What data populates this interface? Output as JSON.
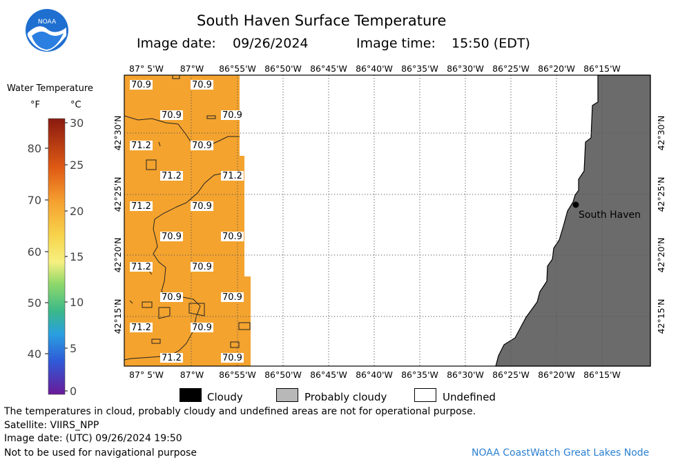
{
  "header": {
    "logo_text": "NOAA",
    "title": "South Haven Surface Temperature",
    "image_date_label": "Image date:",
    "image_date": "09/26/2024",
    "image_time_label": "Image time:",
    "image_time": "15:50 (EDT)"
  },
  "colorbar": {
    "title": "Water Temperature",
    "unit_f": "°F",
    "unit_c": "°C",
    "f_ticks": [
      "80",
      "70",
      "60",
      "50",
      "40"
    ],
    "c_ticks": [
      "30",
      "25",
      "20",
      "15",
      "10",
      "5",
      "0"
    ]
  },
  "map": {
    "lon_labels": [
      "87° 5'W",
      "87°W",
      "86°55'W",
      "86°50'W",
      "86°45'W",
      "86°40'W",
      "86°35'W",
      "86°30'W",
      "86°25'W",
      "86°20'W",
      "86°15'W"
    ],
    "lat_labels": [
      "42°30'N",
      "42°25'N",
      "42°20'N",
      "42°15'N"
    ],
    "city_label": "South Haven",
    "temp_labels": [
      "70.9",
      "70.9",
      "70.9",
      "70.9",
      "71.2",
      "70.9",
      "71.2",
      "71.2",
      "71.2",
      "70.9",
      "70.9",
      "70.9",
      "71.2",
      "70.9",
      "70.9",
      "70.9",
      "71.2",
      "70.9",
      "71.2",
      "70.9"
    ],
    "colors": {
      "water": "#f4a32e",
      "land": "#6b6b6b"
    }
  },
  "legend": {
    "cloudy": "Cloudy",
    "probably_cloudy": "Probably cloudy",
    "undefined": "Undefined",
    "colors": {
      "cloudy": "#000000",
      "probably_cloudy": "#b8b8b8",
      "undefined": "#ffffff"
    }
  },
  "footer": {
    "note": "The temperatures in cloud, probably cloudy and undefined areas are not for operational purpose.",
    "satellite": "Satellite: VIIRS_NPP",
    "utc_date": "Image date: (UTC) 09/26/2024  19:50",
    "nav_warning": "Not to be used for navigational purpose",
    "credit": "NOAA CoastWatch Great Lakes Node"
  }
}
